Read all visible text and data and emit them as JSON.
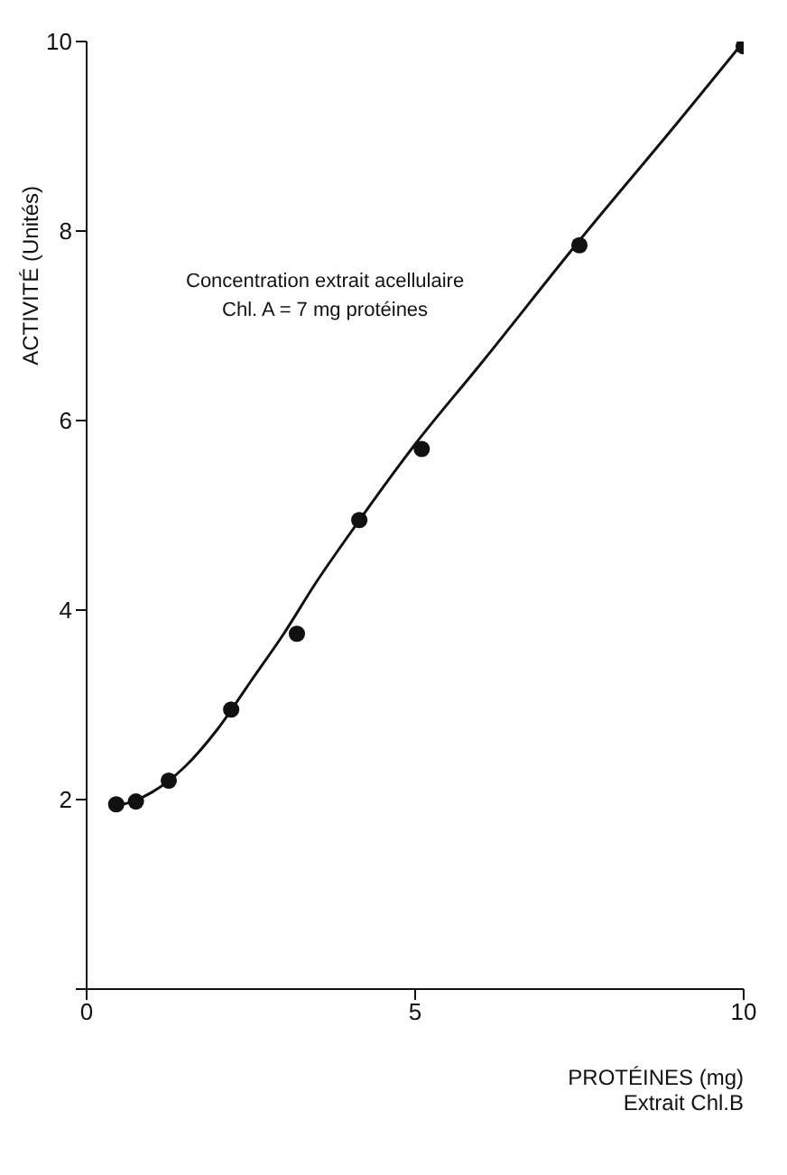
{
  "chart_data": {
    "type": "scatter",
    "xlabel": "PROTÉINES (mg)\nExtrait Chl.B",
    "ylabel": "ACTIVITÉ (Unités)",
    "annotations": [
      "Concentration extrait acellulaire",
      "Chl. A = 7 mg protéines"
    ],
    "xlim": [
      0,
      10
    ],
    "ylim": [
      0,
      10
    ],
    "xticks": [
      0,
      5,
      10
    ],
    "yticks": [
      {
        "value": 0,
        "label": null
      },
      2,
      4,
      6,
      8,
      10
    ],
    "series": [
      {
        "marker": "circle",
        "color": "#111111",
        "x": [
          0.45,
          0.75,
          1.25,
          2.2,
          3.2,
          4.15,
          5.1,
          7.5,
          10
        ],
        "values": [
          1.95,
          1.98,
          2.2,
          2.95,
          3.75,
          4.95,
          5.7,
          7.85,
          9.95
        ]
      },
      {
        "type": "line",
        "marker": "none",
        "line_style": "solid",
        "color": "#111111",
        "x": [
          0.35,
          0.7,
          1.0,
          1.5,
          2.0,
          2.5,
          3.0,
          3.5,
          4.0,
          5.0,
          6.0,
          7.5,
          9.0,
          10
        ],
        "values": [
          1.92,
          1.98,
          2.08,
          2.35,
          2.75,
          3.25,
          3.75,
          4.3,
          4.8,
          5.75,
          6.6,
          7.9,
          9.15,
          10
        ]
      }
    ]
  }
}
